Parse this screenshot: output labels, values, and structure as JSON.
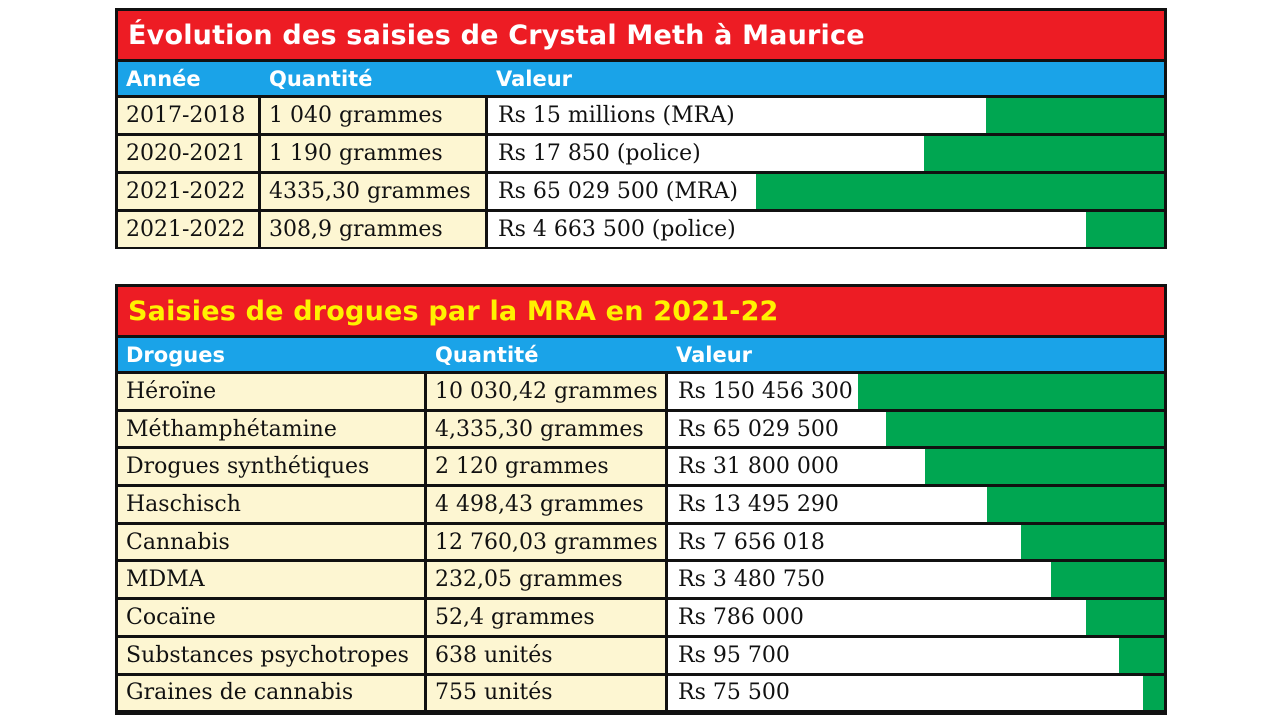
{
  "tables": [
    {
      "title": "Évolution des saisies de Crystal Meth à Maurice",
      "headers": [
        "Année",
        "Quantité",
        "Valeur"
      ],
      "rows": [
        {
          "c1": "2017-2018",
          "c2": "1 040 grammes",
          "c3": "Rs 15 millions (MRA)",
          "bar": 0.264
        },
        {
          "c1": "2020-2021",
          "c2": "1 190 grammes",
          "c3": "Rs 17 850 (police)",
          "bar": 0.355
        },
        {
          "c1": "2021-2022",
          "c2": "4335,30 grammes",
          "c3": "Rs 65 029 500 (MRA)",
          "bar": 0.604
        },
        {
          "c1": "2021-2022",
          "c2": "308,9 grammes",
          "c3": "Rs 4 663 500 (police)",
          "bar": 0.116
        }
      ]
    },
    {
      "title": "Saisies de drogues par la MRA en 2021-22",
      "headers": [
        "Drogues",
        "Quantité",
        "Valeur"
      ],
      "rows": [
        {
          "c1": "Héroïne",
          "c2": "10 030,42 grammes",
          "c3": "Rs 150 456 300",
          "bar": 0.617
        },
        {
          "c1": "Méthamphétamine",
          "c2": "4,335,30 grammes",
          "c3": "Rs 65 029 500",
          "bar": 0.56
        },
        {
          "c1": "Drogues synthétiques",
          "c2": "2 120 grammes",
          "c3": "Rs 31 800 000",
          "bar": 0.481
        },
        {
          "c1": "Haschisch",
          "c2": "4 498,43 grammes",
          "c3": "Rs 13 495 290",
          "bar": 0.357
        },
        {
          "c1": "Cannabis",
          "c2": "12 760,03 grammes",
          "c3": "Rs 7 656 018",
          "bar": 0.288
        },
        {
          "c1": "MDMA",
          "c2": "232,05 grammes",
          "c3": "Rs 3 480 750",
          "bar": 0.227
        },
        {
          "c1": "Cocaïne",
          "c2": "52,4 grammes",
          "c3": "Rs 786 000",
          "bar": 0.157
        },
        {
          "c1": "Substances psychotropes",
          "c2": "638 unités",
          "c3": "Rs 95 700",
          "bar": 0.091
        },
        {
          "c1": "Graines de cannabis",
          "c2": "755 unités",
          "c3": "Rs 75 500",
          "bar": 0.043
        }
      ]
    }
  ],
  "chart_data": [
    {
      "type": "table",
      "title": "Évolution des saisies de Crystal Meth à Maurice",
      "columns": [
        "Année",
        "Quantité",
        "Valeur"
      ],
      "rows": [
        [
          "2017-2018",
          "1 040 grammes",
          "Rs 15 millions (MRA)"
        ],
        [
          "2020-2021",
          "1 190 grammes",
          "Rs 17 850 (police)"
        ],
        [
          "2021-2022",
          "4335,30 grammes",
          "Rs 65 029 500 (MRA)"
        ],
        [
          "2021-2022",
          "308,9 grammes",
          "Rs 4 663 500 (police)"
        ]
      ]
    },
    {
      "type": "table",
      "title": "Saisies de drogues par la MRA en 2021-22",
      "columns": [
        "Drogues",
        "Quantité",
        "Valeur"
      ],
      "rows": [
        [
          "Héroïne",
          "10 030,42 grammes",
          "Rs 150 456 300"
        ],
        [
          "Méthamphétamine",
          "4,335,30 grammes",
          "Rs 65 029 500"
        ],
        [
          "Drogues synthétiques",
          "2 120 grammes",
          "Rs 31 800 000"
        ],
        [
          "Haschisch",
          "4 498,43 grammes",
          "Rs 13 495 290"
        ],
        [
          "Cannabis",
          "12 760,03 grammes",
          "Rs 7 656 018"
        ],
        [
          "MDMA",
          "232,05 grammes",
          "Rs 3 480 750"
        ],
        [
          "Cocaïne",
          "52,4 grammes",
          "Rs 786 000"
        ],
        [
          "Substances psychotropes",
          "638 unités",
          "Rs 95 700"
        ],
        [
          "Graines de cannabis",
          "755 unités",
          "Rs 75 500"
        ]
      ]
    }
  ],
  "colors": {
    "title_bg": "#ed1c24",
    "title1_text": "#ffffff",
    "title2_text": "#fff200",
    "header_bg": "#1aa3e8",
    "row_bg": "#fdf6d2",
    "bar": "#00a651",
    "border": "#111111"
  }
}
